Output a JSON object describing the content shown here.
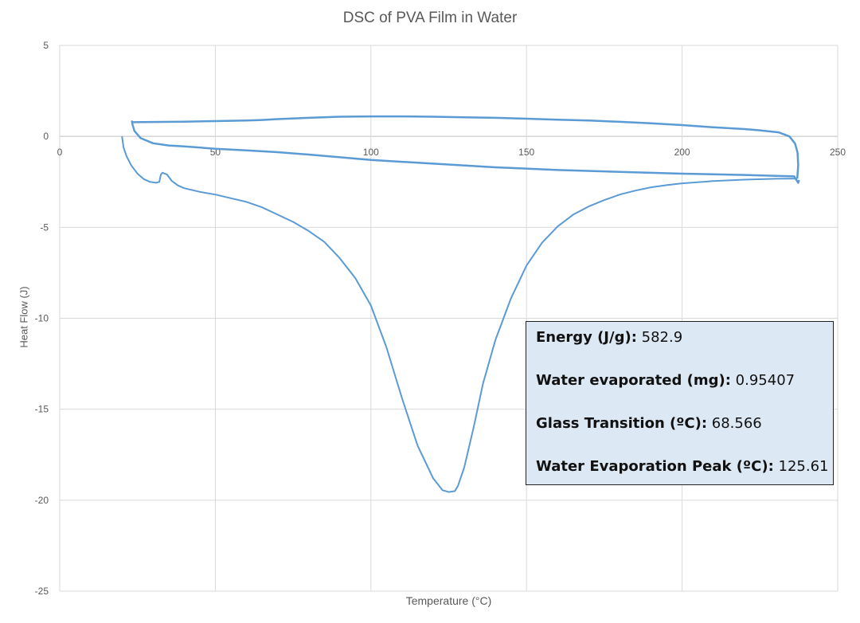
{
  "chart_data": {
    "type": "line",
    "title": "DSC of PVA Film in Water",
    "xlabel": "Temperature (°C)",
    "ylabel": "Heat Flow (J)",
    "xlim": [
      0,
      250
    ],
    "ylim": [
      -25,
      5
    ],
    "x_ticks": [
      0,
      50,
      100,
      150,
      200,
      250
    ],
    "y_ticks": [
      5,
      0,
      -5,
      -10,
      -15,
      -20,
      -25
    ],
    "grid": true,
    "line_color": "#5b9bd5",
    "series": [
      {
        "points": [
          [
            20,
            0
          ],
          [
            20.5,
            -0.6
          ],
          [
            21.5,
            -1.1
          ],
          [
            23,
            -1.6
          ],
          [
            25,
            -2.05
          ],
          [
            27,
            -2.35
          ],
          [
            29,
            -2.5
          ],
          [
            31,
            -2.55
          ],
          [
            32,
            -2.5
          ],
          [
            32.5,
            -2.1
          ],
          [
            33,
            -2.0
          ],
          [
            34.5,
            -2.1
          ],
          [
            36,
            -2.45
          ],
          [
            38,
            -2.7
          ],
          [
            40,
            -2.85
          ],
          [
            45,
            -3.05
          ],
          [
            50,
            -3.2
          ],
          [
            55,
            -3.4
          ],
          [
            60,
            -3.6
          ],
          [
            65,
            -3.9
          ],
          [
            70,
            -4.3
          ],
          [
            75,
            -4.7
          ],
          [
            80,
            -5.2
          ],
          [
            85,
            -5.8
          ],
          [
            90,
            -6.7
          ],
          [
            95,
            -7.8
          ],
          [
            100,
            -9.3
          ],
          [
            105,
            -11.6
          ],
          [
            110,
            -14.4
          ],
          [
            115,
            -17.0
          ],
          [
            120,
            -18.8
          ],
          [
            123,
            -19.45
          ],
          [
            125,
            -19.55
          ],
          [
            127,
            -19.5
          ],
          [
            128,
            -19.2
          ],
          [
            130,
            -18.2
          ],
          [
            133,
            -16.0
          ],
          [
            136,
            -13.6
          ],
          [
            140,
            -11.2
          ],
          [
            145,
            -8.9
          ],
          [
            150,
            -7.1
          ],
          [
            155,
            -5.85
          ],
          [
            160,
            -4.95
          ],
          [
            165,
            -4.3
          ],
          [
            170,
            -3.85
          ],
          [
            175,
            -3.5
          ],
          [
            180,
            -3.2
          ],
          [
            185,
            -2.98
          ],
          [
            190,
            -2.8
          ],
          [
            195,
            -2.68
          ],
          [
            200,
            -2.58
          ],
          [
            210,
            -2.46
          ],
          [
            220,
            -2.38
          ],
          [
            230,
            -2.33
          ],
          [
            237,
            -2.32
          ]
        ]
      },
      {
        "points": [
          [
            237,
            -2.32
          ],
          [
            237.3,
            -1.6
          ],
          [
            237.1,
            -0.9
          ],
          [
            236.3,
            -0.4
          ],
          [
            234.5,
            0.0
          ],
          [
            231,
            0.22
          ],
          [
            225,
            0.33
          ],
          [
            220,
            0.4
          ],
          [
            210,
            0.5
          ],
          [
            200,
            0.62
          ],
          [
            190,
            0.72
          ],
          [
            180,
            0.8
          ],
          [
            170,
            0.87
          ],
          [
            160,
            0.92
          ],
          [
            150,
            0.97
          ],
          [
            140,
            1.02
          ],
          [
            130,
            1.05
          ],
          [
            120,
            1.08
          ],
          [
            110,
            1.1
          ],
          [
            100,
            1.1
          ],
          [
            90,
            1.08
          ],
          [
            80,
            1.02
          ],
          [
            70,
            0.95
          ],
          [
            65,
            0.9
          ],
          [
            60,
            0.87
          ],
          [
            50,
            0.84
          ],
          [
            40,
            0.81
          ],
          [
            30,
            0.79
          ],
          [
            23.5,
            0.78
          ],
          [
            23.2,
            0.82
          ],
          [
            23.4,
            0.65
          ],
          [
            24,
            0.3
          ],
          [
            26,
            -0.1
          ],
          [
            30,
            -0.38
          ],
          [
            35,
            -0.5
          ],
          [
            40,
            -0.55
          ],
          [
            50,
            -0.68
          ],
          [
            60,
            -0.77
          ],
          [
            70,
            -0.87
          ],
          [
            80,
            -1.0
          ],
          [
            90,
            -1.15
          ],
          [
            100,
            -1.3
          ],
          [
            120,
            -1.5
          ],
          [
            140,
            -1.7
          ],
          [
            160,
            -1.85
          ],
          [
            180,
            -1.95
          ],
          [
            200,
            -2.05
          ],
          [
            220,
            -2.12
          ],
          [
            236,
            -2.2
          ],
          [
            237.3,
            -2.55
          ],
          [
            237.6,
            -2.4
          ]
        ]
      }
    ],
    "annotations": [
      {
        "label": "Energy (J/g):",
        "value": "582.9"
      },
      {
        "label": "Water evaporated (mg):",
        "value": "0.95407"
      },
      {
        "label": "Glass Transition (ºC):",
        "value": "68.566"
      },
      {
        "label": "Water Evaporation Peak (ºC):",
        "value": "125.61"
      }
    ]
  }
}
